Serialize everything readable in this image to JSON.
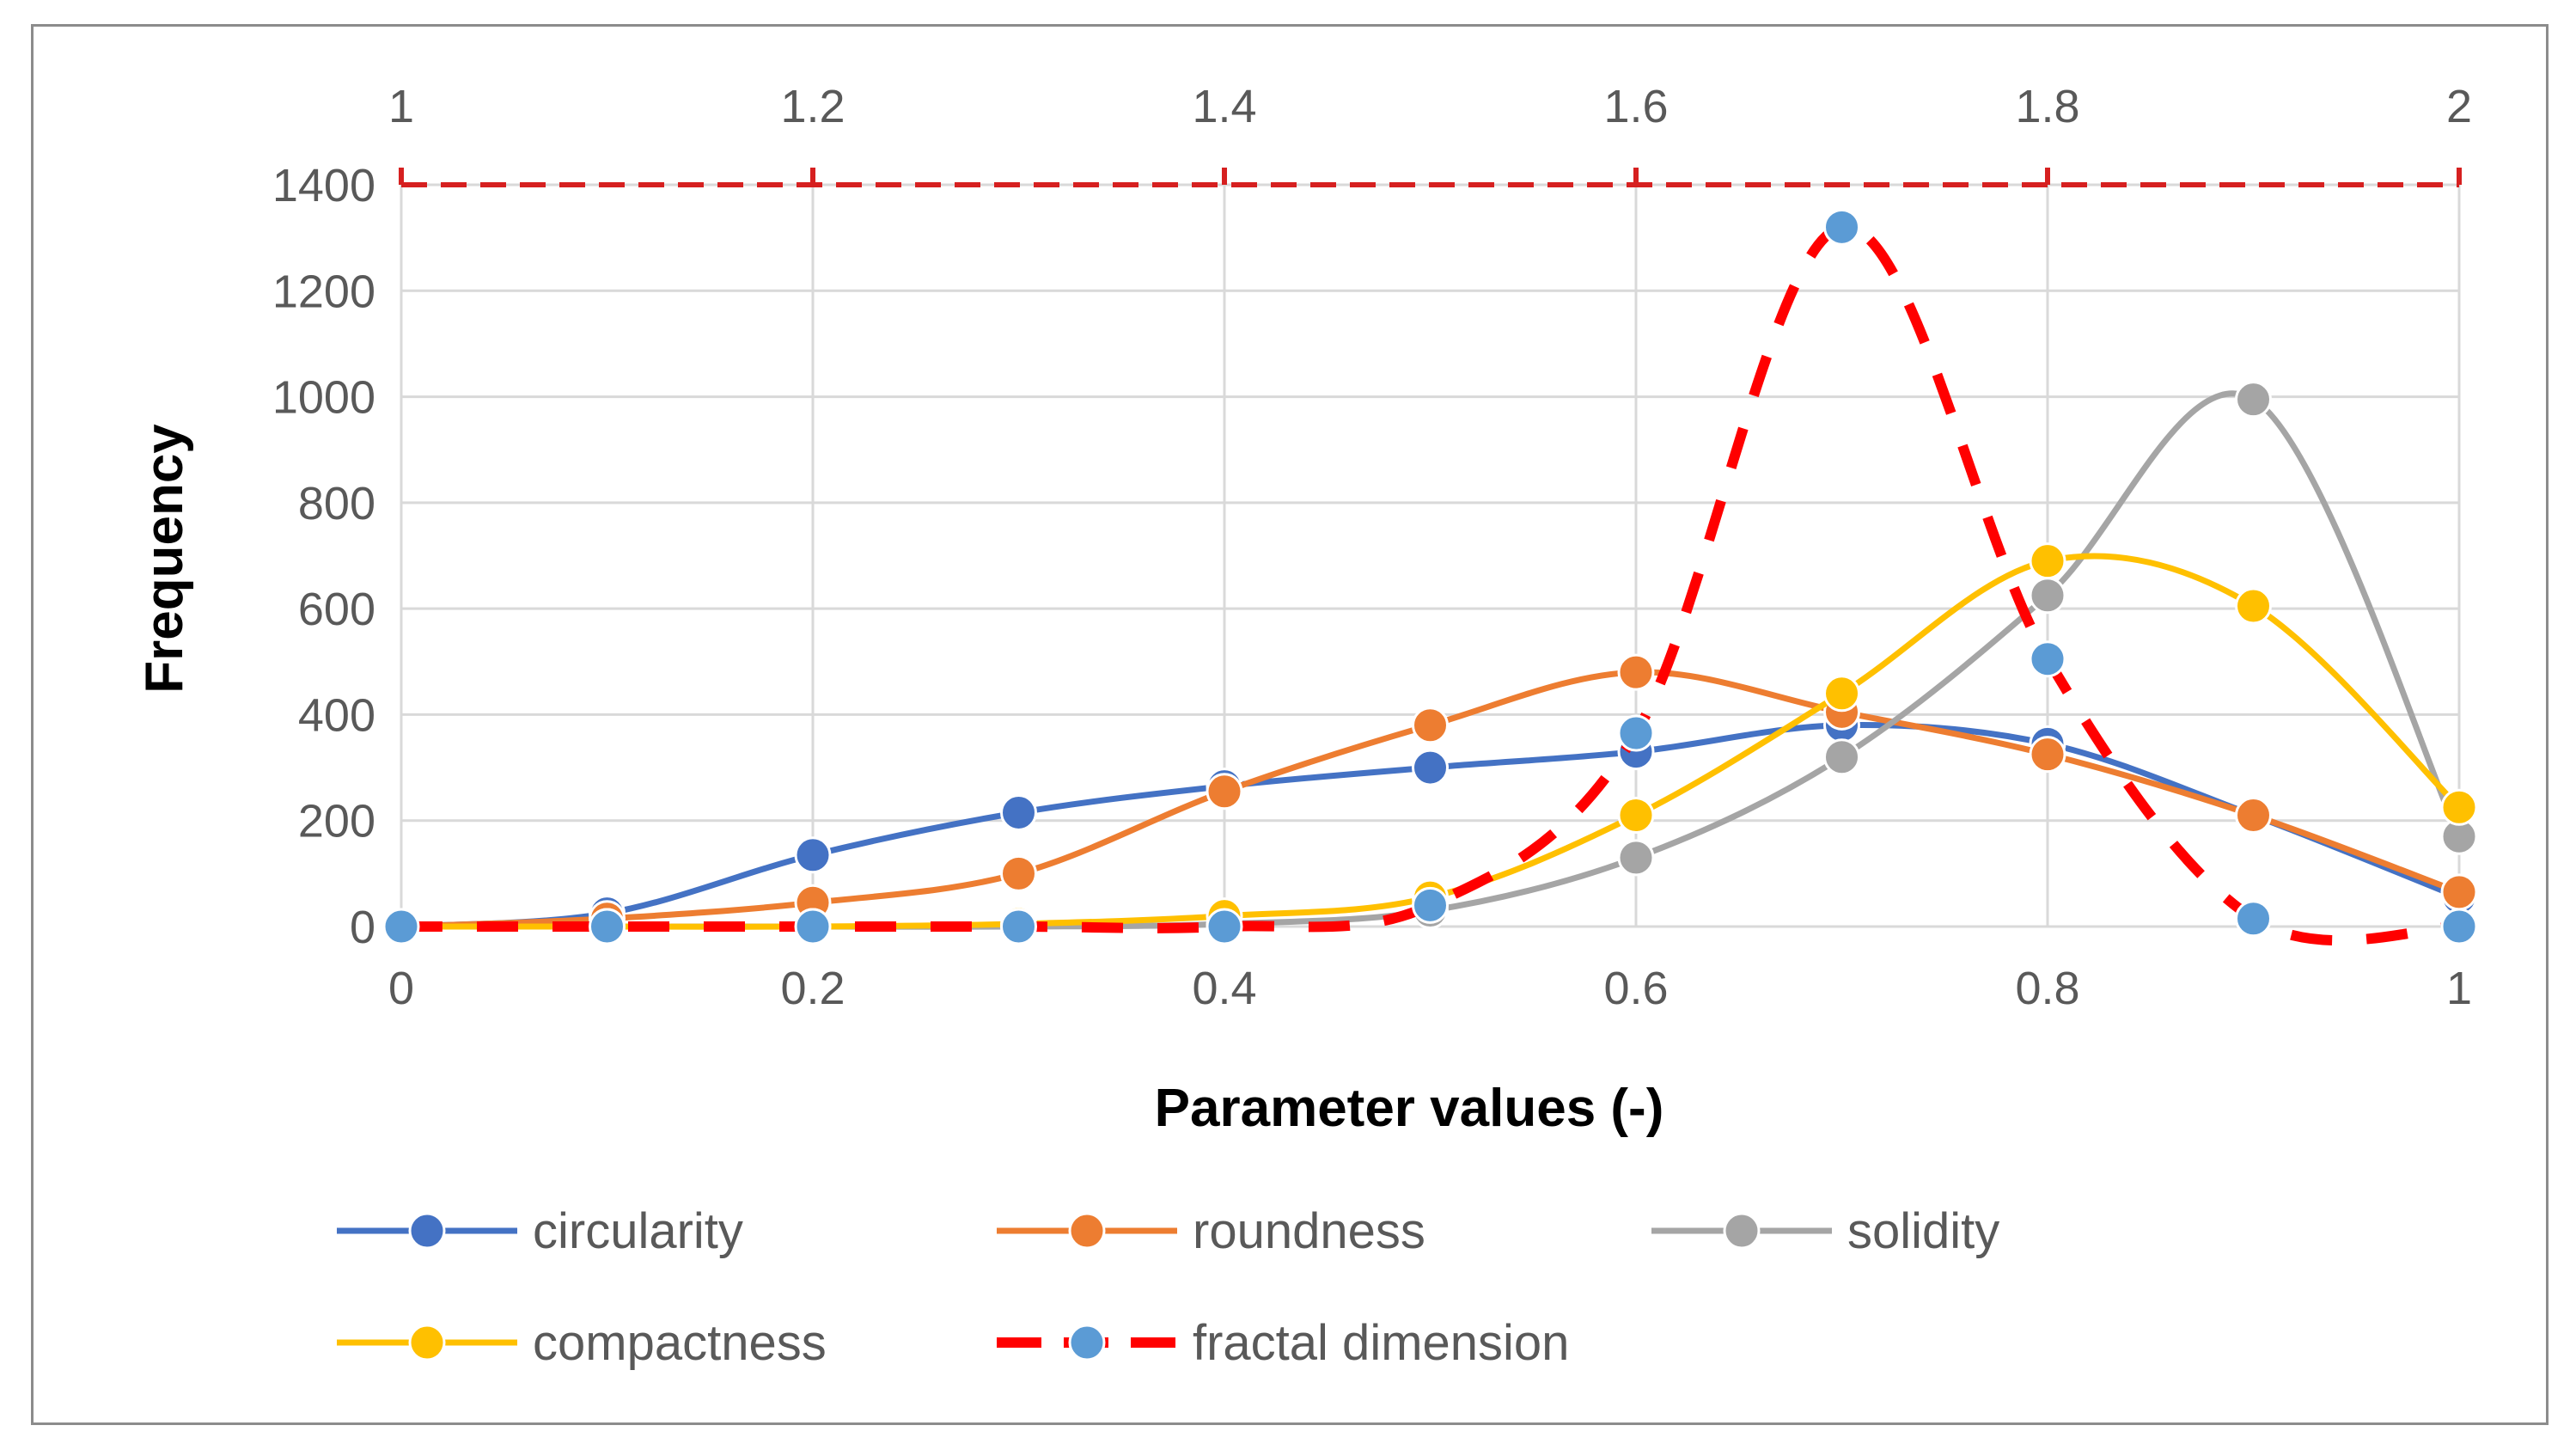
{
  "chart_data": {
    "type": "line",
    "xlabel": "Parameter values (-)",
    "ylabel": "Frequency",
    "xlim": [
      0,
      1
    ],
    "ylim": [
      0,
      1400
    ],
    "x_ticks": [
      "0",
      "0.2",
      "0.4",
      "0.6",
      "0.8",
      "1"
    ],
    "y_ticks": [
      "0",
      "200",
      "400",
      "600",
      "800",
      "1000",
      "1200",
      "1400"
    ],
    "x2lim": [
      1,
      2
    ],
    "x2_ticks": [
      "1",
      "1.2",
      "1.4",
      "1.6",
      "1.8",
      "2"
    ],
    "grid": true,
    "legend_position": "bottom",
    "series": [
      {
        "name": "circularity",
        "color": "#4472C4",
        "axis": "bottom",
        "dashed": false,
        "x": [
          0,
          0.1,
          0.2,
          0.3,
          0.4,
          0.5,
          0.6,
          0.7,
          0.8,
          0.9,
          1
        ],
        "values": [
          0,
          25,
          135,
          215,
          265,
          300,
          330,
          380,
          345,
          210,
          55
        ]
      },
      {
        "name": "roundness",
        "color": "#ED7D31",
        "axis": "bottom",
        "dashed": false,
        "x": [
          0,
          0.1,
          0.2,
          0.3,
          0.4,
          0.5,
          0.6,
          0.7,
          0.8,
          0.9,
          1
        ],
        "values": [
          0,
          15,
          45,
          100,
          255,
          380,
          480,
          405,
          325,
          210,
          65
        ]
      },
      {
        "name": "solidity",
        "color": "#A5A5A5",
        "axis": "bottom",
        "dashed": false,
        "x": [
          0,
          0.1,
          0.2,
          0.3,
          0.4,
          0.5,
          0.6,
          0.7,
          0.8,
          0.9,
          1
        ],
        "values": [
          0,
          0,
          0,
          0,
          5,
          30,
          130,
          320,
          625,
          995,
          170
        ]
      },
      {
        "name": "compactness",
        "color": "#FFC000",
        "axis": "bottom",
        "dashed": false,
        "x": [
          0,
          0.1,
          0.2,
          0.3,
          0.4,
          0.5,
          0.6,
          0.7,
          0.8,
          0.9,
          1
        ],
        "values": [
          0,
          0,
          0,
          5,
          20,
          55,
          210,
          440,
          690,
          605,
          225
        ]
      },
      {
        "name": "fractal dimension",
        "color": "#FF0000",
        "marker_color": "#5B9BD5",
        "axis": "top",
        "dashed": true,
        "x": [
          1,
          1.1,
          1.2,
          1.3,
          1.4,
          1.5,
          1.6,
          1.7,
          1.8,
          1.9,
          2
        ],
        "values": [
          0,
          0,
          0,
          0,
          0,
          40,
          365,
          1320,
          505,
          15,
          0
        ]
      }
    ]
  }
}
